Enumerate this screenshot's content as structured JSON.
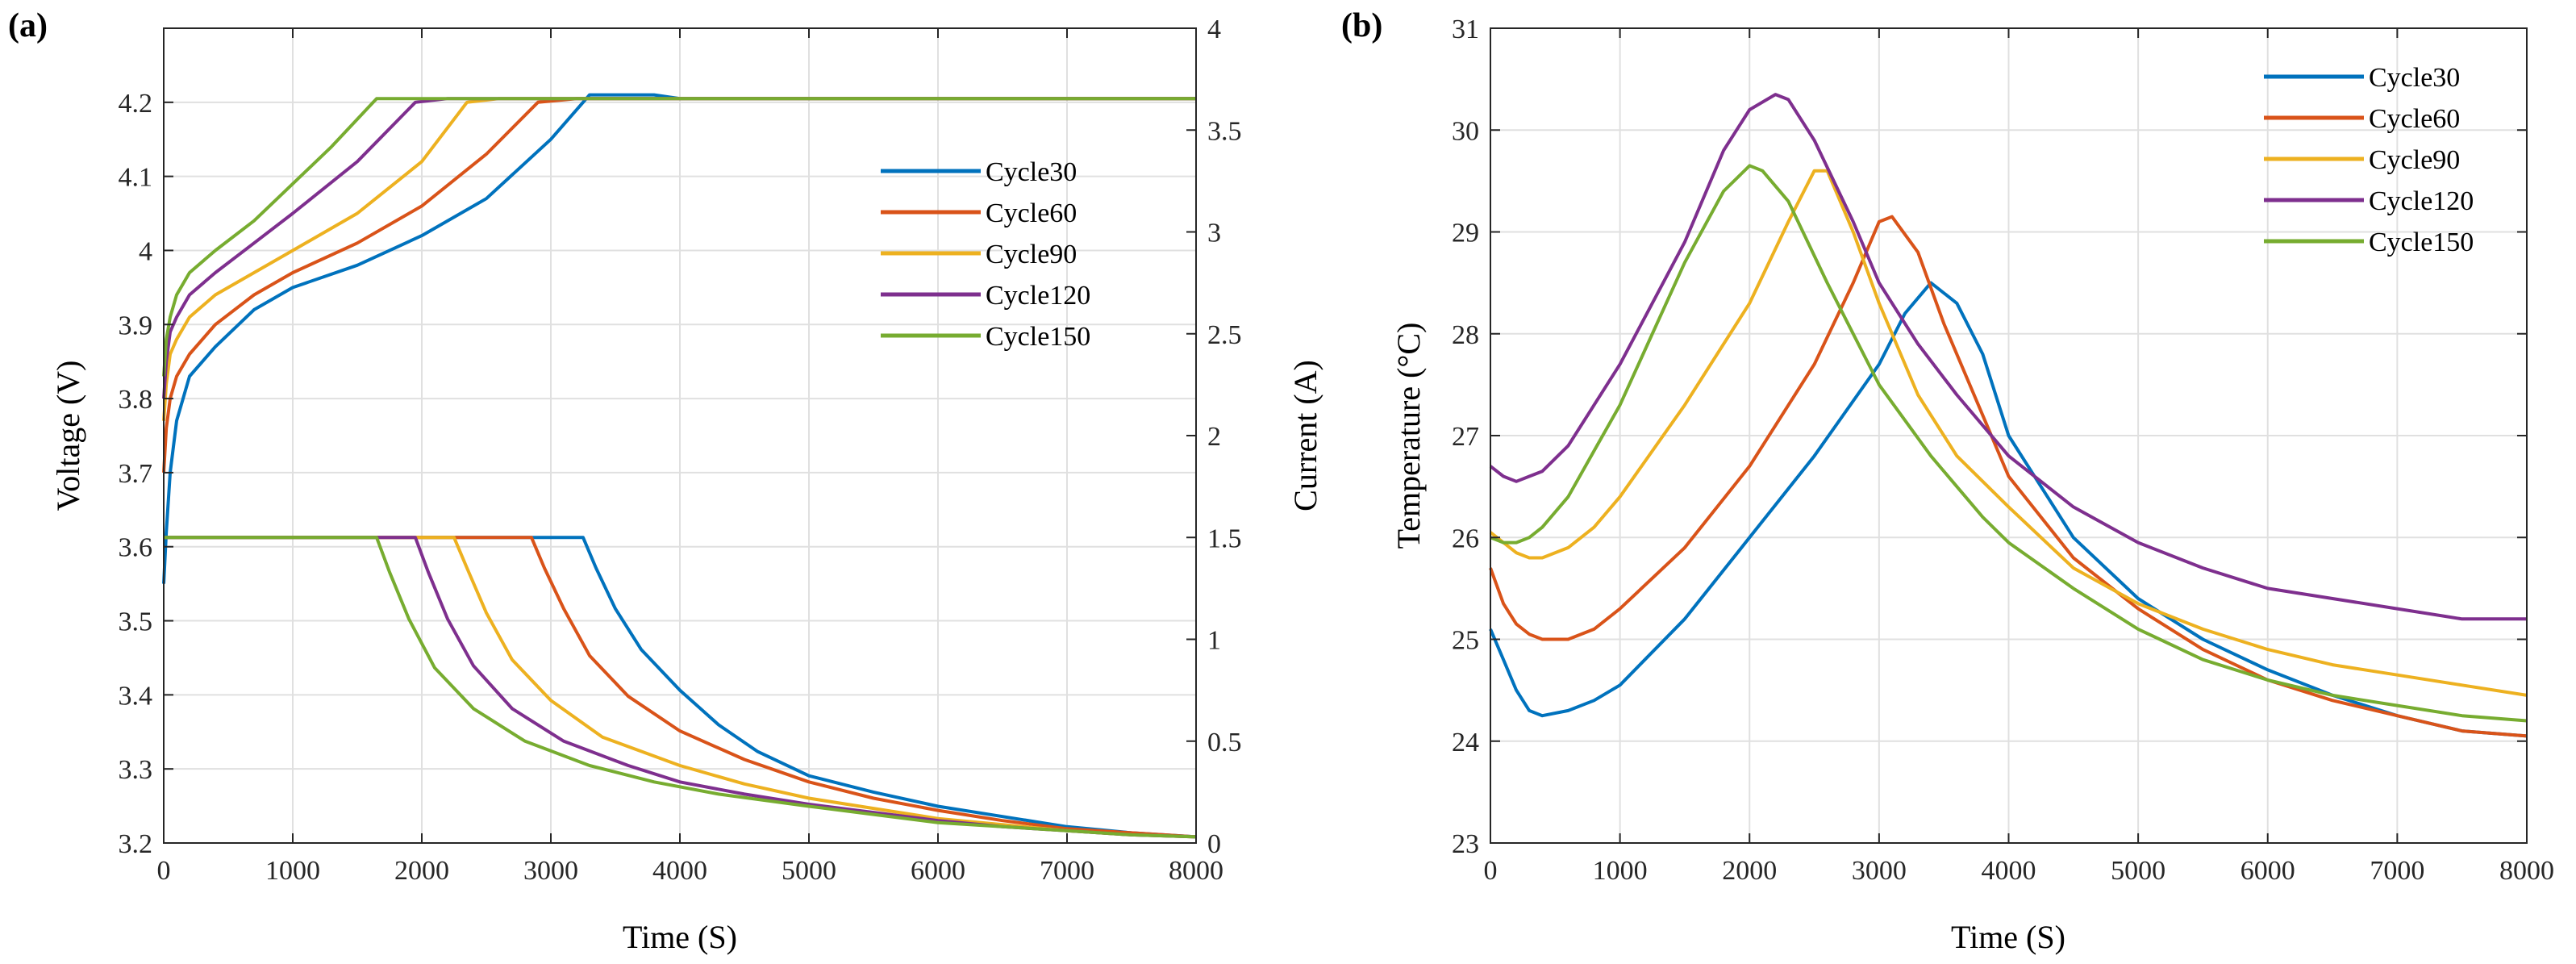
{
  "colors": {
    "c30": "#0072BD",
    "c60": "#D95319",
    "c90": "#EDB120",
    "c120": "#7E2F8E",
    "c150": "#77AC30",
    "grid": "#e0e0e0",
    "axis": "#262626"
  },
  "chart_data": [
    {
      "panel": "(a)",
      "type": "line",
      "xlabel": "Time (S)",
      "ylabel": "Voltage (V)",
      "ylabel_right": "Current (A)",
      "xlim": [
        0,
        8000
      ],
      "ylim": [
        3.2,
        4.3
      ],
      "ylim_right": [
        0,
        4
      ],
      "xticks": [
        "0",
        "1000",
        "2000",
        "3000",
        "4000",
        "5000",
        "6000",
        "7000",
        "8000"
      ],
      "yticks": [
        "3.2",
        "3.3",
        "3.4",
        "3.5",
        "3.6",
        "3.7",
        "3.8",
        "3.9",
        "4",
        "4.1",
        "4.2"
      ],
      "yticks_right": [
        "0",
        "0.5",
        "1",
        "1.5",
        "2",
        "2.5",
        "3",
        "3.5",
        "4"
      ],
      "legend_position": "middle-right",
      "series": [
        {
          "name": "Cycle30",
          "color_key": "c30",
          "voltage": {
            "x": [
              0,
              20,
              50,
              100,
              200,
              400,
              700,
              1000,
              1500,
              2000,
              2500,
              3000,
              3300,
              3500,
              3800,
              4000,
              5000,
              6000,
              7000,
              8000
            ],
            "y": [
              3.55,
              3.62,
              3.7,
              3.77,
              3.83,
              3.87,
              3.92,
              3.95,
              3.98,
              4.02,
              4.07,
              4.15,
              4.21,
              4.21,
              4.21,
              4.205,
              4.205,
              4.205,
              4.205,
              4.205
            ]
          },
          "current": {
            "x": [
              0,
              3250,
              3350,
              3500,
              3700,
              4000,
              4300,
              4600,
              5000,
              5500,
              6000,
              6500,
              7000,
              7500,
              8000
            ],
            "y": [
              1.5,
              1.5,
              1.35,
              1.15,
              0.95,
              0.75,
              0.58,
              0.45,
              0.33,
              0.25,
              0.18,
              0.13,
              0.08,
              0.05,
              0.03
            ]
          }
        },
        {
          "name": "Cycle60",
          "color_key": "c60",
          "voltage": {
            "x": [
              0,
              20,
              50,
              100,
              200,
              400,
              700,
              1000,
              1500,
              2000,
              2500,
              2900,
              3200,
              4000,
              5000,
              6000,
              7000,
              8000
            ],
            "y": [
              3.7,
              3.76,
              3.8,
              3.83,
              3.86,
              3.9,
              3.94,
              3.97,
              4.01,
              4.06,
              4.13,
              4.2,
              4.205,
              4.205,
              4.205,
              4.205,
              4.205,
              4.205
            ]
          },
          "current": {
            "x": [
              0,
              2850,
              2950,
              3100,
              3300,
              3600,
              4000,
              4500,
              5000,
              5500,
              6000,
              6500,
              7000,
              7500,
              8000
            ],
            "y": [
              1.5,
              1.5,
              1.35,
              1.15,
              0.92,
              0.72,
              0.55,
              0.41,
              0.3,
              0.22,
              0.16,
              0.11,
              0.07,
              0.05,
              0.03
            ]
          }
        },
        {
          "name": "Cycle90",
          "color_key": "c90",
          "voltage": {
            "x": [
              0,
              20,
              50,
              100,
              200,
              400,
              700,
              1000,
              1500,
              2000,
              2350,
              2600,
              3000,
              4000,
              5000,
              6000,
              7000,
              8000
            ],
            "y": [
              3.77,
              3.82,
              3.86,
              3.88,
              3.91,
              3.94,
              3.97,
              4.0,
              4.05,
              4.12,
              4.2,
              4.205,
              4.205,
              4.205,
              4.205,
              4.205,
              4.205,
              4.205
            ]
          },
          "current": {
            "x": [
              0,
              2250,
              2350,
              2500,
              2700,
              3000,
              3400,
              4000,
              4500,
              5000,
              5500,
              6000,
              6500,
              7000,
              7500,
              8000
            ],
            "y": [
              1.5,
              1.5,
              1.35,
              1.13,
              0.9,
              0.7,
              0.52,
              0.38,
              0.29,
              0.22,
              0.17,
              0.12,
              0.09,
              0.06,
              0.04,
              0.03
            ]
          }
        },
        {
          "name": "Cycle120",
          "color_key": "c120",
          "voltage": {
            "x": [
              0,
              20,
              50,
              100,
              200,
              400,
              700,
              1000,
              1500,
              1950,
              2200,
              2500,
              3000,
              4000,
              5000,
              6000,
              7000,
              8000
            ],
            "y": [
              3.8,
              3.85,
              3.89,
              3.91,
              3.94,
              3.97,
              4.01,
              4.05,
              4.12,
              4.2,
              4.205,
              4.205,
              4.205,
              4.205,
              4.205,
              4.205,
              4.205,
              4.205
            ]
          },
          "current": {
            "x": [
              0,
              1950,
              2050,
              2200,
              2400,
              2700,
              3100,
              3600,
              4000,
              4500,
              5000,
              5500,
              6000,
              6500,
              7000,
              7500,
              8000
            ],
            "y": [
              1.5,
              1.5,
              1.33,
              1.1,
              0.87,
              0.66,
              0.5,
              0.38,
              0.3,
              0.24,
              0.19,
              0.15,
              0.11,
              0.08,
              0.06,
              0.04,
              0.03
            ]
          }
        },
        {
          "name": "Cycle150",
          "color_key": "c150",
          "voltage": {
            "x": [
              0,
              20,
              50,
              100,
              200,
              400,
              700,
              1000,
              1300,
              1650,
              1900,
              2200,
              3000,
              4000,
              5000,
              6000,
              7000,
              8000
            ],
            "y": [
              3.83,
              3.88,
              3.91,
              3.94,
              3.97,
              4.0,
              4.04,
              4.09,
              4.14,
              4.205,
              4.205,
              4.205,
              4.205,
              4.205,
              4.205,
              4.205,
              4.205,
              4.205
            ]
          },
          "current": {
            "x": [
              0,
              1650,
              1750,
              1900,
              2100,
              2400,
              2800,
              3300,
              3800,
              4300,
              5000,
              5500,
              6000,
              6500,
              7000,
              7500,
              8000
            ],
            "y": [
              1.5,
              1.5,
              1.33,
              1.1,
              0.86,
              0.66,
              0.5,
              0.38,
              0.3,
              0.24,
              0.18,
              0.14,
              0.1,
              0.08,
              0.06,
              0.04,
              0.03
            ]
          }
        }
      ]
    },
    {
      "panel": "(b)",
      "type": "line",
      "xlabel": "Time (S)",
      "ylabel": "Temperature (°C)",
      "xlim": [
        0,
        8000
      ],
      "ylim": [
        23,
        31
      ],
      "xticks": [
        "0",
        "1000",
        "2000",
        "3000",
        "4000",
        "5000",
        "6000",
        "7000",
        "8000"
      ],
      "yticks": [
        "23",
        "24",
        "25",
        "26",
        "27",
        "28",
        "29",
        "30",
        "31"
      ],
      "legend_position": "top-right",
      "series": [
        {
          "name": "Cycle30",
          "color_key": "c30",
          "x": [
            0,
            100,
            200,
            300,
            400,
            600,
            800,
            1000,
            1500,
            2000,
            2500,
            3000,
            3200,
            3400,
            3600,
            3800,
            4000,
            4500,
            5000,
            5500,
            6000,
            6500,
            7000,
            7500,
            8000
          ],
          "y": [
            25.1,
            24.8,
            24.5,
            24.3,
            24.25,
            24.3,
            24.4,
            24.55,
            25.2,
            26.0,
            26.8,
            27.7,
            28.2,
            28.5,
            28.3,
            27.8,
            27.0,
            26.0,
            25.4,
            25.0,
            24.7,
            24.45,
            24.25,
            24.1,
            24.05
          ]
        },
        {
          "name": "Cycle60",
          "color_key": "c60",
          "x": [
            0,
            100,
            200,
            300,
            400,
            600,
            800,
            1000,
            1500,
            2000,
            2500,
            2800,
            3000,
            3100,
            3300,
            3500,
            3800,
            4000,
            4500,
            5000,
            5500,
            6000,
            6500,
            7000,
            7500,
            8000
          ],
          "y": [
            25.7,
            25.35,
            25.15,
            25.05,
            25.0,
            25.0,
            25.1,
            25.3,
            25.9,
            26.7,
            27.7,
            28.5,
            29.1,
            29.15,
            28.8,
            28.1,
            27.2,
            26.6,
            25.8,
            25.3,
            24.9,
            24.6,
            24.4,
            24.25,
            24.1,
            24.05
          ]
        },
        {
          "name": "Cycle90",
          "color_key": "c90",
          "x": [
            0,
            100,
            200,
            300,
            400,
            600,
            800,
            1000,
            1500,
            2000,
            2300,
            2500,
            2600,
            2800,
            3000,
            3300,
            3600,
            4000,
            4500,
            5000,
            5500,
            6000,
            6500,
            7000,
            7500,
            8000
          ],
          "y": [
            26.05,
            25.95,
            25.85,
            25.8,
            25.8,
            25.9,
            26.1,
            26.4,
            27.3,
            28.3,
            29.1,
            29.6,
            29.6,
            29.0,
            28.3,
            27.4,
            26.8,
            26.3,
            25.7,
            25.35,
            25.1,
            24.9,
            24.75,
            24.65,
            24.55,
            24.45
          ]
        },
        {
          "name": "Cycle120",
          "color_key": "c120",
          "x": [
            0,
            100,
            200,
            300,
            400,
            600,
            800,
            1000,
            1500,
            1800,
            2000,
            2200,
            2300,
            2500,
            2800,
            3000,
            3300,
            3600,
            4000,
            4500,
            5000,
            5500,
            6000,
            6500,
            7000,
            7500,
            8000
          ],
          "y": [
            26.7,
            26.6,
            26.55,
            26.6,
            26.65,
            26.9,
            27.3,
            27.7,
            28.9,
            29.8,
            30.2,
            30.35,
            30.3,
            29.9,
            29.1,
            28.5,
            27.9,
            27.4,
            26.8,
            26.3,
            25.95,
            25.7,
            25.5,
            25.4,
            25.3,
            25.2,
            25.2
          ]
        },
        {
          "name": "Cycle150",
          "color_key": "c150",
          "x": [
            0,
            100,
            200,
            300,
            400,
            600,
            800,
            1000,
            1500,
            1800,
            2000,
            2100,
            2300,
            2600,
            3000,
            3400,
            3800,
            4000,
            4500,
            5000,
            5500,
            6000,
            6500,
            7000,
            7500,
            8000
          ],
          "y": [
            26.0,
            25.95,
            25.95,
            26.0,
            26.1,
            26.4,
            26.85,
            27.3,
            28.7,
            29.4,
            29.65,
            29.6,
            29.3,
            28.5,
            27.5,
            26.8,
            26.2,
            25.95,
            25.5,
            25.1,
            24.8,
            24.6,
            24.45,
            24.35,
            24.25,
            24.2
          ]
        }
      ]
    }
  ]
}
